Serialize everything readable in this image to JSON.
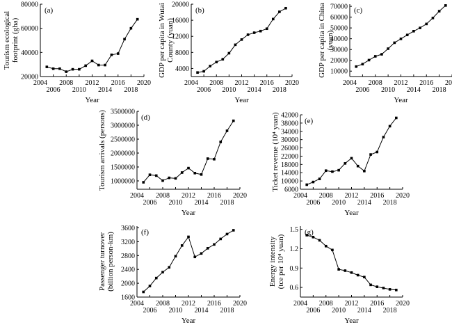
{
  "chart_data": [
    {
      "type": "line",
      "panel_label": "(a)",
      "ylabel": [
        "Tourism ecological",
        "footprint (gha)"
      ],
      "xlabel": "Year",
      "xticks": [
        "2004",
        "2006",
        "2008",
        "2010",
        "2012",
        "2014",
        "2016",
        "2018",
        "2020"
      ],
      "yticks": [
        "20000",
        "40000",
        "60000",
        "80000"
      ],
      "xlim": [
        2004,
        2020
      ],
      "ylim": [
        20000,
        80000
      ],
      "x": [
        2005,
        2006,
        2007,
        2008,
        2009,
        2010,
        2011,
        2012,
        2013,
        2014,
        2015,
        2016,
        2017,
        2018,
        2019
      ],
      "values": [
        28000,
        26500,
        26500,
        24000,
        26000,
        26000,
        29000,
        33000,
        29500,
        29500,
        38000,
        39000,
        51000,
        60000,
        67500
      ]
    },
    {
      "type": "line",
      "panel_label": "(b)",
      "ylabel": [
        "GDP per capita in Wutai",
        "County (yuan)"
      ],
      "xlabel": "Year",
      "xticks": [
        "2004",
        "2006",
        "2008",
        "2010",
        "2012",
        "2014",
        "2016",
        "2018",
        "2020"
      ],
      "yticks": [
        "4000",
        "8000",
        "12000",
        "16000",
        "20000"
      ],
      "xlim": [
        2004,
        2020
      ],
      "ylim": [
        2000,
        20000
      ],
      "x": [
        2005,
        2006,
        2007,
        2008,
        2009,
        2010,
        2011,
        2012,
        2013,
        2014,
        2015,
        2016,
        2017,
        2018,
        2019
      ],
      "values": [
        3000,
        3300,
        4600,
        5600,
        6300,
        7800,
        9900,
        11200,
        12400,
        12900,
        13300,
        13900,
        16300,
        18100,
        19000
      ]
    },
    {
      "type": "line",
      "panel_label": "(c)",
      "ylabel": [
        "GDP per capita in China",
        "(yuan)"
      ],
      "xlabel": "Year",
      "xticks": [
        "2004",
        "2006",
        "2008",
        "2010",
        "2012",
        "2014",
        "2016",
        "2018",
        "2020"
      ],
      "yticks": [
        "10000",
        "20000",
        "30000",
        "40000",
        "50000",
        "60000",
        "70000"
      ],
      "xlim": [
        2004,
        2020
      ],
      "ylim": [
        5000,
        72000
      ],
      "x": [
        2005,
        2006,
        2007,
        2008,
        2009,
        2010,
        2011,
        2012,
        2013,
        2014,
        2015,
        2016,
        2017,
        2018,
        2019
      ],
      "values": [
        14200,
        16500,
        20200,
        23700,
        25600,
        30800,
        36300,
        39900,
        43500,
        47000,
        50000,
        53700,
        59200,
        65500,
        70800
      ]
    },
    {
      "type": "line",
      "panel_label": "(d)",
      "ylabel": [
        "Tourism arrivals (persons)"
      ],
      "xlabel": "Year",
      "xticks": [
        "2004",
        "2006",
        "2008",
        "2010",
        "2012",
        "2014",
        "2016",
        "2018",
        "2020"
      ],
      "yticks": [
        "1000000",
        "1500000",
        "2000000",
        "2500000",
        "3000000",
        "3500000"
      ],
      "xlim": [
        2004,
        2020
      ],
      "ylim": [
        700000,
        3500000
      ],
      "x": [
        2005,
        2006,
        2007,
        2008,
        2009,
        2010,
        2011,
        2012,
        2013,
        2014,
        2015,
        2016,
        2017,
        2018,
        2019
      ],
      "values": [
        950000,
        1220000,
        1190000,
        1010000,
        1110000,
        1090000,
        1300000,
        1460000,
        1280000,
        1230000,
        1800000,
        1780000,
        2400000,
        2800000,
        3160000
      ]
    },
    {
      "type": "line",
      "panel_label": "(e)",
      "ylabel": [
        "Ticket revenue (10⁴ yuan)"
      ],
      "xlabel": "Year",
      "xticks": [
        "2004",
        "2006",
        "2008",
        "2010",
        "2012",
        "2014",
        "2016",
        "2018",
        "2020"
      ],
      "yticks": [
        "6000",
        "10000",
        "14000",
        "18000",
        "22000",
        "26000",
        "30000",
        "34000",
        "38000",
        "42000"
      ],
      "xlim": [
        2004,
        2020
      ],
      "ylim": [
        6000,
        42000
      ],
      "x": [
        2005,
        2006,
        2007,
        2008,
        2009,
        2010,
        2011,
        2012,
        2013,
        2014,
        2015,
        2016,
        2017,
        2018,
        2019
      ],
      "values": [
        8200,
        9500,
        11000,
        15000,
        14500,
        15200,
        18500,
        21000,
        17200,
        14800,
        22800,
        24000,
        31200,
        36500,
        40500
      ]
    },
    {
      "type": "line",
      "panel_label": "(f)",
      "ylabel": [
        "Passenger turnover",
        "(billion person-km)"
      ],
      "xlabel": "Year",
      "xticks": [
        "2004",
        "2006",
        "2008",
        "2010",
        "2012",
        "2014",
        "2016",
        "2018",
        "2020"
      ],
      "yticks": [
        "1600",
        "2000",
        "2400",
        "2800",
        "3200",
        "3600"
      ],
      "xlim": [
        2004,
        2020
      ],
      "ylim": [
        1600,
        3650
      ],
      "x": [
        2005,
        2006,
        2007,
        2008,
        2009,
        2010,
        2011,
        2012,
        2013,
        2014,
        2015,
        2016,
        2017,
        2018,
        2019
      ],
      "values": [
        1750,
        1920,
        2150,
        2320,
        2460,
        2780,
        3090,
        3340,
        2760,
        2860,
        3010,
        3120,
        3280,
        3420,
        3530
      ]
    },
    {
      "type": "line",
      "panel_label": "(g)",
      "ylabel": [
        "Energy intensity",
        "(tce per 10⁴ yuan)"
      ],
      "xlabel": "Year",
      "xticks": [
        "2004",
        "2006",
        "2008",
        "2010",
        "2012",
        "2014",
        "2016",
        "2018",
        "2020"
      ],
      "yticks": [
        "0.6",
        "0.9",
        "1.2",
        "1.5"
      ],
      "xlim": [
        2004,
        2020
      ],
      "ylim": [
        0.45,
        1.55
      ],
      "x": [
        2005,
        2006,
        2007,
        2008,
        2009,
        2010,
        2011,
        2012,
        2013,
        2014,
        2015,
        2016,
        2017,
        2018,
        2019
      ],
      "values": [
        1.41,
        1.38,
        1.33,
        1.24,
        1.18,
        0.88,
        0.86,
        0.83,
        0.79,
        0.76,
        0.64,
        0.61,
        0.59,
        0.57,
        0.56
      ]
    }
  ]
}
